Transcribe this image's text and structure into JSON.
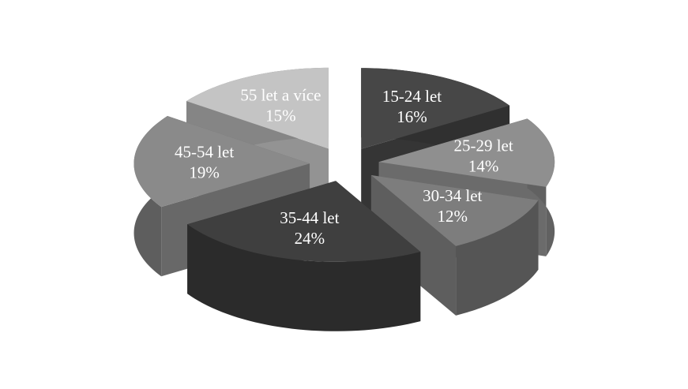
{
  "chart_data": {
    "type": "pie",
    "style": "3d-exploded",
    "title": "",
    "categories": [
      "15-24 let",
      "25-29 let",
      "30-34 let",
      "35-44 let",
      "45-54 let",
      "55 let a více"
    ],
    "values": [
      16,
      14,
      12,
      24,
      19,
      15
    ],
    "labels": [
      {
        "category": "15-24 let",
        "percent": "16%"
      },
      {
        "category": "25-29 let",
        "percent": "14%"
      },
      {
        "category": "30-34 let",
        "percent": "12%"
      },
      {
        "category": "35-44 let",
        "percent": "24%"
      },
      {
        "category": "45-54 let",
        "percent": "19%"
      },
      {
        "category": "55 let a více",
        "percent": "15%"
      }
    ],
    "colors": [
      "#474747",
      "#8f8f8f",
      "#7d7d7d",
      "#3f3f3f",
      "#8a8a8a",
      "#c4c4c4"
    ],
    "legend": "none"
  }
}
